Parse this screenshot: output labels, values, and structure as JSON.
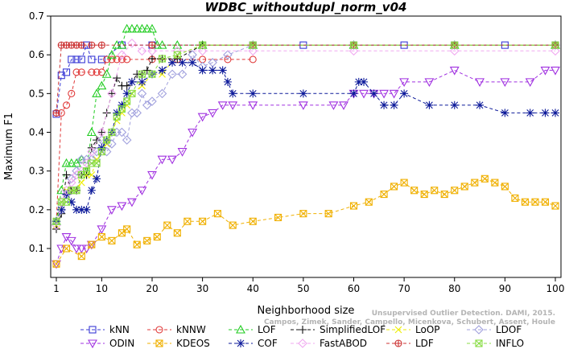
{
  "chart_data": {
    "type": "line",
    "title": "WDBC_withoutdupl_norm_v04",
    "xlabel": "Neighborhood size",
    "ylabel": "Maximum F1",
    "xlim": [
      0,
      100
    ],
    "ylim": [
      0.05,
      0.7
    ],
    "x_ticks": [
      1,
      10,
      20,
      30,
      40,
      50,
      60,
      70,
      80,
      90,
      100
    ],
    "y_ticks": [
      0.1,
      0.2,
      0.3,
      0.4,
      0.5,
      0.6,
      0.7
    ],
    "grid": false,
    "legend_position": "bottom",
    "watermark": [
      "Campos, Zimek, Sander, Campello, Micenkova, Schubert, Assent, Houle",
      "Unsupervised Outlier Detection. DAMI, 2015."
    ],
    "series": [
      {
        "name": "kNN",
        "color": "#3a3ad6",
        "marker": "square",
        "x": [
          1,
          2,
          3,
          4,
          5,
          6,
          7,
          8,
          10,
          14,
          20,
          30,
          40,
          50,
          60,
          70,
          80,
          90,
          100
        ],
        "values": [
          0.447,
          0.547,
          0.555,
          0.588,
          0.588,
          0.588,
          0.625,
          0.588,
          0.588,
          0.625,
          0.625,
          0.625,
          0.625,
          0.625,
          0.625,
          0.625,
          0.625,
          0.625,
          0.625
        ]
      },
      {
        "name": "kNNW",
        "color": "#e03a3a",
        "marker": "circle",
        "x": [
          1,
          2,
          3,
          4,
          5,
          6,
          8,
          9,
          10,
          11,
          12,
          13,
          14,
          15,
          20,
          25,
          30,
          35,
          40
        ],
        "values": [
          0.17,
          0.45,
          0.47,
          0.5,
          0.555,
          0.555,
          0.555,
          0.555,
          0.555,
          0.588,
          0.588,
          0.588,
          0.588,
          0.588,
          0.588,
          0.588,
          0.588,
          0.588,
          0.588
        ]
      },
      {
        "name": "LOF",
        "color": "#22cc22",
        "marker": "triangle-up",
        "x": [
          1,
          2,
          3,
          4,
          5,
          6,
          7,
          8,
          9,
          10,
          11,
          12,
          13,
          14,
          15,
          16,
          17,
          18,
          19,
          20,
          21,
          22,
          25,
          30,
          40,
          60,
          80,
          100
        ],
        "values": [
          0.17,
          0.25,
          0.32,
          0.32,
          0.32,
          0.33,
          0.3,
          0.4,
          0.5,
          0.52,
          0.55,
          0.6,
          0.625,
          0.625,
          0.667,
          0.667,
          0.667,
          0.667,
          0.667,
          0.667,
          0.625,
          0.625,
          0.625,
          0.625,
          0.625,
          0.625,
          0.625,
          0.625
        ]
      },
      {
        "name": "SimplifiedLOF",
        "color": "#111111",
        "marker": "plus",
        "x": [
          1,
          2,
          3,
          4,
          5,
          6,
          7,
          8,
          9,
          10,
          11,
          12,
          13,
          14,
          15,
          16,
          17,
          18,
          19,
          20,
          22,
          25,
          30,
          40,
          60,
          80,
          100
        ],
        "values": [
          0.15,
          0.19,
          0.29,
          0.25,
          0.25,
          0.29,
          0.29,
          0.36,
          0.38,
          0.4,
          0.45,
          0.5,
          0.54,
          0.52,
          0.52,
          0.53,
          0.55,
          0.55,
          0.56,
          0.59,
          0.59,
          0.59,
          0.625,
          0.625,
          0.625,
          0.625,
          0.625
        ]
      },
      {
        "name": "LoOP",
        "color": "#eeee00",
        "marker": "cross",
        "x": [
          1,
          2,
          3,
          4,
          5,
          6,
          7,
          8,
          9,
          10,
          11,
          12,
          13,
          14,
          15,
          16,
          18,
          20,
          22,
          25,
          30,
          40,
          60,
          80,
          100
        ],
        "values": [
          0.16,
          0.22,
          0.25,
          0.25,
          0.25,
          0.27,
          0.29,
          0.29,
          0.33,
          0.35,
          0.37,
          0.4,
          0.43,
          0.45,
          0.47,
          0.5,
          0.52,
          0.55,
          0.55,
          0.6,
          0.625,
          0.625,
          0.625,
          0.625,
          0.625
        ]
      },
      {
        "name": "LDOF",
        "color": "#a0a0dd",
        "marker": "diamond",
        "x": [
          1,
          2,
          3,
          4,
          5,
          6,
          7,
          8,
          9,
          10,
          11,
          12,
          13,
          14,
          15,
          16,
          17,
          18,
          19,
          20,
          22,
          24,
          26,
          28,
          30,
          32,
          35,
          40,
          60,
          80,
          100
        ],
        "values": [
          0.17,
          0.2,
          0.24,
          0.28,
          0.3,
          0.33,
          0.33,
          0.33,
          0.35,
          0.38,
          0.35,
          0.37,
          0.4,
          0.4,
          0.38,
          0.45,
          0.45,
          0.5,
          0.47,
          0.48,
          0.5,
          0.55,
          0.55,
          0.6,
          0.57,
          0.58,
          0.6,
          0.625,
          0.625,
          0.625,
          0.625
        ]
      },
      {
        "name": "ODIN",
        "color": "#a030e0",
        "marker": "triangle-down",
        "x": [
          1,
          2,
          3,
          4,
          5,
          6,
          7,
          8,
          10,
          12,
          14,
          16,
          18,
          20,
          22,
          24,
          26,
          28,
          30,
          32,
          34,
          36,
          40,
          50,
          56,
          58,
          60,
          62,
          64,
          66,
          68,
          70,
          75,
          80,
          85,
          90,
          95,
          98,
          100
        ],
        "values": [
          0.06,
          0.1,
          0.13,
          0.12,
          0.1,
          0.1,
          0.1,
          0.11,
          0.15,
          0.2,
          0.21,
          0.22,
          0.25,
          0.29,
          0.33,
          0.33,
          0.35,
          0.4,
          0.44,
          0.45,
          0.47,
          0.47,
          0.47,
          0.47,
          0.47,
          0.47,
          0.5,
          0.5,
          0.5,
          0.5,
          0.5,
          0.53,
          0.53,
          0.56,
          0.53,
          0.53,
          0.53,
          0.56,
          0.56
        ]
      },
      {
        "name": "KDEOS",
        "color": "#f0b000",
        "marker": "square-x",
        "x": [
          1,
          3,
          6,
          8,
          10,
          12,
          14,
          15,
          17,
          19,
          21,
          23,
          25,
          27,
          30,
          33,
          36,
          40,
          45,
          50,
          55,
          60,
          63,
          66,
          68,
          70,
          72,
          74,
          76,
          78,
          80,
          82,
          84,
          86,
          88,
          90,
          92,
          94,
          96,
          98,
          100
        ],
        "values": [
          0.06,
          0.1,
          0.08,
          0.11,
          0.13,
          0.12,
          0.14,
          0.15,
          0.11,
          0.12,
          0.13,
          0.16,
          0.14,
          0.17,
          0.17,
          0.19,
          0.16,
          0.17,
          0.18,
          0.19,
          0.19,
          0.21,
          0.22,
          0.24,
          0.26,
          0.27,
          0.25,
          0.24,
          0.25,
          0.24,
          0.25,
          0.26,
          0.27,
          0.28,
          0.27,
          0.26,
          0.23,
          0.22,
          0.22,
          0.22,
          0.21
        ]
      },
      {
        "name": "COF",
        "color": "#0d1a9a",
        "marker": "asterisk",
        "x": [
          1,
          2,
          3,
          4,
          5,
          6,
          7,
          8,
          9,
          10,
          11,
          12,
          13,
          14,
          15,
          16,
          18,
          20,
          22,
          24,
          26,
          28,
          30,
          32,
          34,
          35,
          36,
          40,
          50,
          60,
          61,
          62,
          64,
          66,
          68,
          70,
          75,
          80,
          85,
          90,
          95,
          98,
          100
        ],
        "values": [
          0.17,
          0.2,
          0.24,
          0.22,
          0.2,
          0.2,
          0.2,
          0.25,
          0.28,
          0.36,
          0.38,
          0.4,
          0.45,
          0.47,
          0.5,
          0.53,
          0.53,
          0.55,
          0.56,
          0.58,
          0.58,
          0.58,
          0.56,
          0.56,
          0.56,
          0.53,
          0.5,
          0.5,
          0.5,
          0.5,
          0.53,
          0.53,
          0.5,
          0.47,
          0.47,
          0.5,
          0.47,
          0.47,
          0.47,
          0.45,
          0.45,
          0.45,
          0.45
        ]
      },
      {
        "name": "FastABOD",
        "color": "#f0a8f0",
        "marker": "diamond",
        "x": [
          1,
          2,
          3,
          4,
          5,
          6,
          7,
          8,
          10,
          12,
          14,
          16,
          18,
          20,
          25,
          30,
          40,
          60,
          80,
          100
        ],
        "values": [
          0.16,
          0.22,
          0.25,
          0.27,
          0.29,
          0.3,
          0.32,
          0.35,
          0.4,
          0.5,
          0.6,
          0.63,
          0.61,
          0.61,
          0.61,
          0.61,
          0.61,
          0.61,
          0.61,
          0.61
        ]
      },
      {
        "name": "LDF",
        "color": "#cc3333",
        "marker": "circle-plus",
        "x": [
          1,
          2,
          3,
          4,
          5,
          6,
          8,
          10,
          20,
          40,
          60,
          80,
          100
        ],
        "values": [
          0.45,
          0.625,
          0.625,
          0.625,
          0.625,
          0.625,
          0.625,
          0.625,
          0.625,
          0.625,
          0.625,
          0.625,
          0.625
        ]
      },
      {
        "name": "INFLO",
        "color": "#88dd44",
        "marker": "square-x",
        "x": [
          1,
          2,
          3,
          4,
          5,
          6,
          7,
          8,
          9,
          10,
          11,
          12,
          13,
          14,
          15,
          16,
          18,
          20,
          22,
          25,
          30,
          40,
          60,
          80,
          100
        ],
        "values": [
          0.17,
          0.22,
          0.22,
          0.25,
          0.25,
          0.29,
          0.3,
          0.32,
          0.32,
          0.35,
          0.38,
          0.4,
          0.44,
          0.46,
          0.48,
          0.5,
          0.55,
          0.55,
          0.59,
          0.6,
          0.625,
          0.625,
          0.625,
          0.625,
          0.625
        ]
      }
    ]
  }
}
